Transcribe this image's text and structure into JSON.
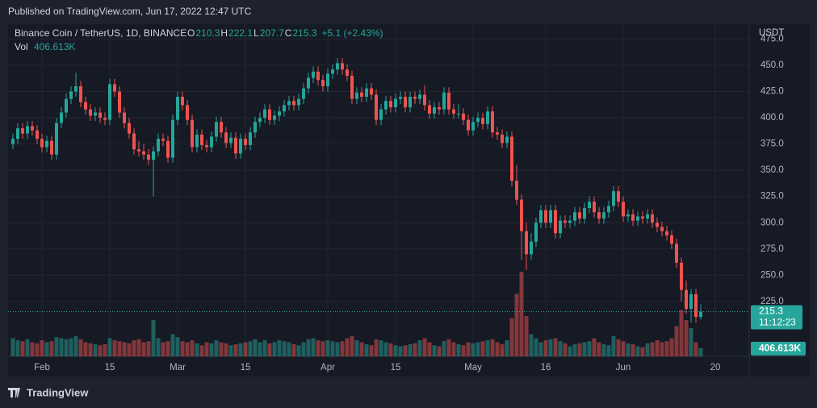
{
  "header": {
    "published": "Published on TradingView.com, Jun 17, 2022 12:47 UTC"
  },
  "footer": {
    "brand": "TradingView"
  },
  "chart_data": {
    "type": "candlestick",
    "legend": {
      "symbol": "Binance Coin / TetherUS, 1D, BINANCE",
      "o_label": "O",
      "o": 210.3,
      "h_label": "H",
      "h": 222.1,
      "l_label": "L",
      "l": 207.7,
      "c_label": "C",
      "c": 215.3,
      "change": "+5.1 (+2.43%)",
      "vol_label": "Vol",
      "vol": "406.613K"
    },
    "currency": "USDT",
    "last_price": 215.3,
    "countdown": "11:12:23",
    "up_color": "#26a69a",
    "down_color": "#ef5350",
    "ylim": [
      172.7,
      483.0
    ],
    "yticks": [
      {
        "value": 225,
        "label": "225.0"
      },
      {
        "value": 250,
        "label": "250.0"
      },
      {
        "value": 275,
        "label": "275.0"
      },
      {
        "value": 300,
        "label": "300.0"
      },
      {
        "value": 325,
        "label": "325.0"
      },
      {
        "value": 350,
        "label": "350.0"
      },
      {
        "value": 375,
        "label": "375.0"
      },
      {
        "value": 400,
        "label": "400.0"
      },
      {
        "value": 425,
        "label": "425.0"
      },
      {
        "value": 450,
        "label": "450.0"
      },
      {
        "value": 475,
        "label": "475.0"
      }
    ],
    "xlim": [
      -1,
      152
    ],
    "xticks": [
      {
        "value": 6,
        "label": "Feb"
      },
      {
        "value": 20,
        "label": "15"
      },
      {
        "value": 34,
        "label": "Mar"
      },
      {
        "value": 48,
        "label": "15"
      },
      {
        "value": 65,
        "label": "Apr"
      },
      {
        "value": 79,
        "label": "15"
      },
      {
        "value": 95,
        "label": "May"
      },
      {
        "value": 110,
        "label": "16"
      },
      {
        "value": 126,
        "label": "Jun"
      },
      {
        "value": 145,
        "label": "20"
      }
    ],
    "grid": true,
    "ohlc": [
      [
        375,
        385,
        370,
        380
      ],
      [
        380,
        395,
        375,
        390
      ],
      [
        390,
        395,
        380,
        385
      ],
      [
        385,
        397,
        380,
        392
      ],
      [
        392,
        397,
        383,
        388
      ],
      [
        388,
        393,
        375,
        380
      ],
      [
        380,
        385,
        367,
        372
      ],
      [
        372,
        383,
        367,
        378
      ],
      [
        378,
        383,
        360,
        365
      ],
      [
        365,
        400,
        360,
        395
      ],
      [
        395,
        410,
        390,
        405
      ],
      [
        405,
        423,
        400,
        418
      ],
      [
        418,
        430,
        413,
        425
      ],
      [
        425,
        443,
        420,
        430
      ],
      [
        430,
        435,
        410,
        415
      ],
      [
        415,
        420,
        403,
        408
      ],
      [
        408,
        413,
        397,
        402
      ],
      [
        402,
        410,
        397,
        405
      ],
      [
        405,
        410,
        395,
        400
      ],
      [
        400,
        405,
        393,
        398
      ],
      [
        398,
        437,
        393,
        432
      ],
      [
        432,
        437,
        420,
        425
      ],
      [
        425,
        430,
        400,
        405
      ],
      [
        405,
        410,
        390,
        395
      ],
      [
        395,
        400,
        380,
        385
      ],
      [
        385,
        390,
        365,
        370
      ],
      [
        370,
        378,
        363,
        368
      ],
      [
        368,
        375,
        360,
        365
      ],
      [
        365,
        370,
        355,
        360
      ],
      [
        360,
        373,
        325,
        368
      ],
      [
        368,
        385,
        363,
        380
      ],
      [
        380,
        385,
        373,
        378
      ],
      [
        378,
        383,
        357,
        362
      ],
      [
        362,
        403,
        357,
        398
      ],
      [
        398,
        425,
        393,
        420
      ],
      [
        420,
        425,
        407,
        412
      ],
      [
        412,
        417,
        393,
        398
      ],
      [
        398,
        403,
        367,
        372
      ],
      [
        372,
        389,
        367,
        384
      ],
      [
        384,
        389,
        369,
        374
      ],
      [
        374,
        379,
        367,
        372
      ],
      [
        372,
        387,
        367,
        382
      ],
      [
        382,
        401,
        377,
        396
      ],
      [
        396,
        401,
        381,
        386
      ],
      [
        386,
        391,
        371,
        376
      ],
      [
        376,
        386,
        371,
        381
      ],
      [
        381,
        386,
        361,
        366
      ],
      [
        366,
        385,
        361,
        380
      ],
      [
        380,
        385,
        369,
        374
      ],
      [
        374,
        391,
        369,
        386
      ],
      [
        386,
        401,
        381,
        396
      ],
      [
        396,
        405,
        391,
        400
      ],
      [
        400,
        413,
        395,
        408
      ],
      [
        408,
        413,
        393,
        398
      ],
      [
        398,
        407,
        393,
        402
      ],
      [
        402,
        411,
        397,
        406
      ],
      [
        406,
        417,
        401,
        412
      ],
      [
        412,
        421,
        407,
        416
      ],
      [
        416,
        421,
        407,
        412
      ],
      [
        412,
        423,
        407,
        418
      ],
      [
        418,
        433,
        413,
        428
      ],
      [
        428,
        443,
        423,
        438
      ],
      [
        438,
        449,
        433,
        444
      ],
      [
        444,
        449,
        431,
        436
      ],
      [
        436,
        441,
        425,
        430
      ],
      [
        430,
        447,
        425,
        442
      ],
      [
        442,
        451,
        437,
        446
      ],
      [
        446,
        457,
        441,
        452
      ],
      [
        452,
        457,
        441,
        446
      ],
      [
        446,
        451,
        435,
        440
      ],
      [
        440,
        445,
        413,
        418
      ],
      [
        418,
        429,
        413,
        424
      ],
      [
        424,
        429,
        415,
        420
      ],
      [
        420,
        433,
        415,
        428
      ],
      [
        428,
        433,
        417,
        422
      ],
      [
        422,
        427,
        393,
        398
      ],
      [
        398,
        413,
        393,
        408
      ],
      [
        408,
        421,
        403,
        416
      ],
      [
        416,
        421,
        405,
        410
      ],
      [
        410,
        423,
        405,
        418
      ],
      [
        418,
        425,
        413,
        420
      ],
      [
        420,
        425,
        405,
        410
      ],
      [
        410,
        425,
        405,
        420
      ],
      [
        420,
        425,
        413,
        418
      ],
      [
        418,
        427,
        413,
        422
      ],
      [
        422,
        431,
        407,
        412
      ],
      [
        412,
        417,
        399,
        404
      ],
      [
        404,
        415,
        399,
        410
      ],
      [
        410,
        415,
        403,
        408
      ],
      [
        408,
        429,
        403,
        424
      ],
      [
        424,
        429,
        403,
        408
      ],
      [
        408,
        413,
        399,
        404
      ],
      [
        404,
        413,
        399,
        404
      ],
      [
        404,
        409,
        393,
        398
      ],
      [
        398,
        403,
        383,
        388
      ],
      [
        388,
        401,
        383,
        396
      ],
      [
        396,
        405,
        391,
        400
      ],
      [
        400,
        405,
        389,
        394
      ],
      [
        394,
        411,
        389,
        406
      ],
      [
        406,
        411,
        381,
        386
      ],
      [
        386,
        391,
        379,
        384
      ],
      [
        384,
        389,
        371,
        376
      ],
      [
        376,
        387,
        371,
        382
      ],
      [
        382,
        387,
        335,
        340
      ],
      [
        340,
        355,
        317,
        322
      ],
      [
        322,
        327,
        265,
        292
      ],
      [
        292,
        300,
        255,
        270
      ],
      [
        270,
        290,
        265,
        282
      ],
      [
        282,
        305,
        277,
        300
      ],
      [
        300,
        317,
        295,
        312
      ],
      [
        312,
        317,
        295,
        300
      ],
      [
        300,
        317,
        295,
        312
      ],
      [
        312,
        317,
        285,
        290
      ],
      [
        290,
        307,
        285,
        302
      ],
      [
        302,
        307,
        295,
        300
      ],
      [
        300,
        307,
        295,
        302
      ],
      [
        302,
        315,
        297,
        310
      ],
      [
        310,
        315,
        299,
        304
      ],
      [
        304,
        319,
        299,
        314
      ],
      [
        314,
        325,
        309,
        320
      ],
      [
        320,
        325,
        305,
        310
      ],
      [
        310,
        315,
        299,
        304
      ],
      [
        304,
        315,
        299,
        310
      ],
      [
        310,
        321,
        305,
        316
      ],
      [
        316,
        335,
        311,
        330
      ],
      [
        330,
        335,
        315,
        320
      ],
      [
        320,
        325,
        301,
        306
      ],
      [
        306,
        313,
        301,
        308
      ],
      [
        308,
        313,
        297,
        302
      ],
      [
        302,
        311,
        297,
        306
      ],
      [
        306,
        311,
        299,
        304
      ],
      [
        304,
        313,
        299,
        308
      ],
      [
        308,
        313,
        295,
        300
      ],
      [
        300,
        305,
        291,
        296
      ],
      [
        296,
        301,
        287,
        292
      ],
      [
        292,
        297,
        283,
        288
      ],
      [
        288,
        293,
        275,
        280
      ],
      [
        280,
        285,
        257,
        262
      ],
      [
        262,
        267,
        225,
        236
      ],
      [
        236,
        245,
        213,
        218
      ],
      [
        218,
        237,
        205,
        232
      ],
      [
        232,
        237,
        205,
        210.3
      ],
      [
        210.3,
        222.1,
        207.7,
        215.3
      ]
    ],
    "volume": [
      900,
      800,
      750,
      850,
      700,
      650,
      800,
      700,
      750,
      950,
      900,
      850,
      900,
      1000,
      850,
      700,
      650,
      600,
      550,
      600,
      900,
      800,
      750,
      700,
      650,
      800,
      850,
      700,
      750,
      1800,
      900,
      700,
      750,
      1100,
      950,
      750,
      700,
      800,
      650,
      550,
      700,
      650,
      800,
      700,
      650,
      550,
      600,
      650,
      700,
      750,
      850,
      700,
      800,
      650,
      700,
      800,
      750,
      700,
      600,
      550,
      700,
      850,
      900,
      800,
      750,
      800,
      750,
      700,
      750,
      900,
      1000,
      800,
      700,
      600,
      550,
      850,
      800,
      700,
      650,
      550,
      500,
      550,
      600,
      650,
      800,
      900,
      700,
      550,
      500,
      750,
      850,
      700,
      600,
      550,
      700,
      650,
      700,
      750,
      800,
      850,
      700,
      600,
      800,
      1900,
      3100,
      4200,
      2000,
      1100,
      900,
      700,
      800,
      850,
      900,
      750,
      650,
      500,
      600,
      650,
      700,
      750,
      900,
      700,
      600,
      550,
      1000,
      850,
      750,
      650,
      600,
      500,
      450,
      650,
      700,
      800,
      700,
      750,
      900,
      1500,
      2300,
      1800,
      1400,
      700,
      406.613
    ],
    "volume_last_label": "406.613K"
  }
}
